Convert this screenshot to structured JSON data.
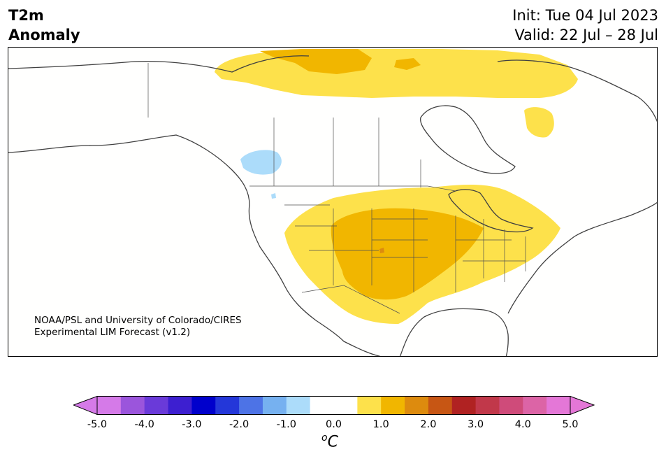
{
  "header": {
    "title_line1": "T2m",
    "title_line2": "Anomaly",
    "init": "Init: Tue 04 Jul 2023",
    "valid": "Valid: 22 Jul – 28 Jul"
  },
  "credit": {
    "line1": "NOAA/PSL and University of Colorado/CIRES",
    "line2": "Experimental LIM Forecast (v1.2)"
  },
  "colorbar": {
    "unit_symbol": "o",
    "unit_letter": "C",
    "ticks": [
      "-5.0",
      "-4.0",
      "-3.0",
      "-2.0",
      "-1.0",
      "0.0",
      "1.0",
      "2.0",
      "3.0",
      "4.0",
      "5.0"
    ],
    "colors": [
      "#d57ae8",
      "#9b55dc",
      "#6a3ad9",
      "#3d1fd0",
      "#0000cc",
      "#2437d9",
      "#4d73e6",
      "#76b1f0",
      "#acdcfa",
      "#ffffff",
      "#ffffff",
      "#fde14b",
      "#f1b600",
      "#dd8b0e",
      "#c75614",
      "#b02222",
      "#c1384a",
      "#cf4b7a",
      "#dc64a6",
      "#e477d7"
    ],
    "under_color": "#d57ae8",
    "over_color": "#e477d7"
  },
  "map": {
    "region": "North America",
    "anomaly_colors": {
      "warm_light": "#fde14b",
      "warm_medium": "#f1b600",
      "warm_strong": "#dd8b0e",
      "cool_light": "#acdcfa",
      "land": "#fffffe",
      "coastline": "#404040"
    }
  }
}
